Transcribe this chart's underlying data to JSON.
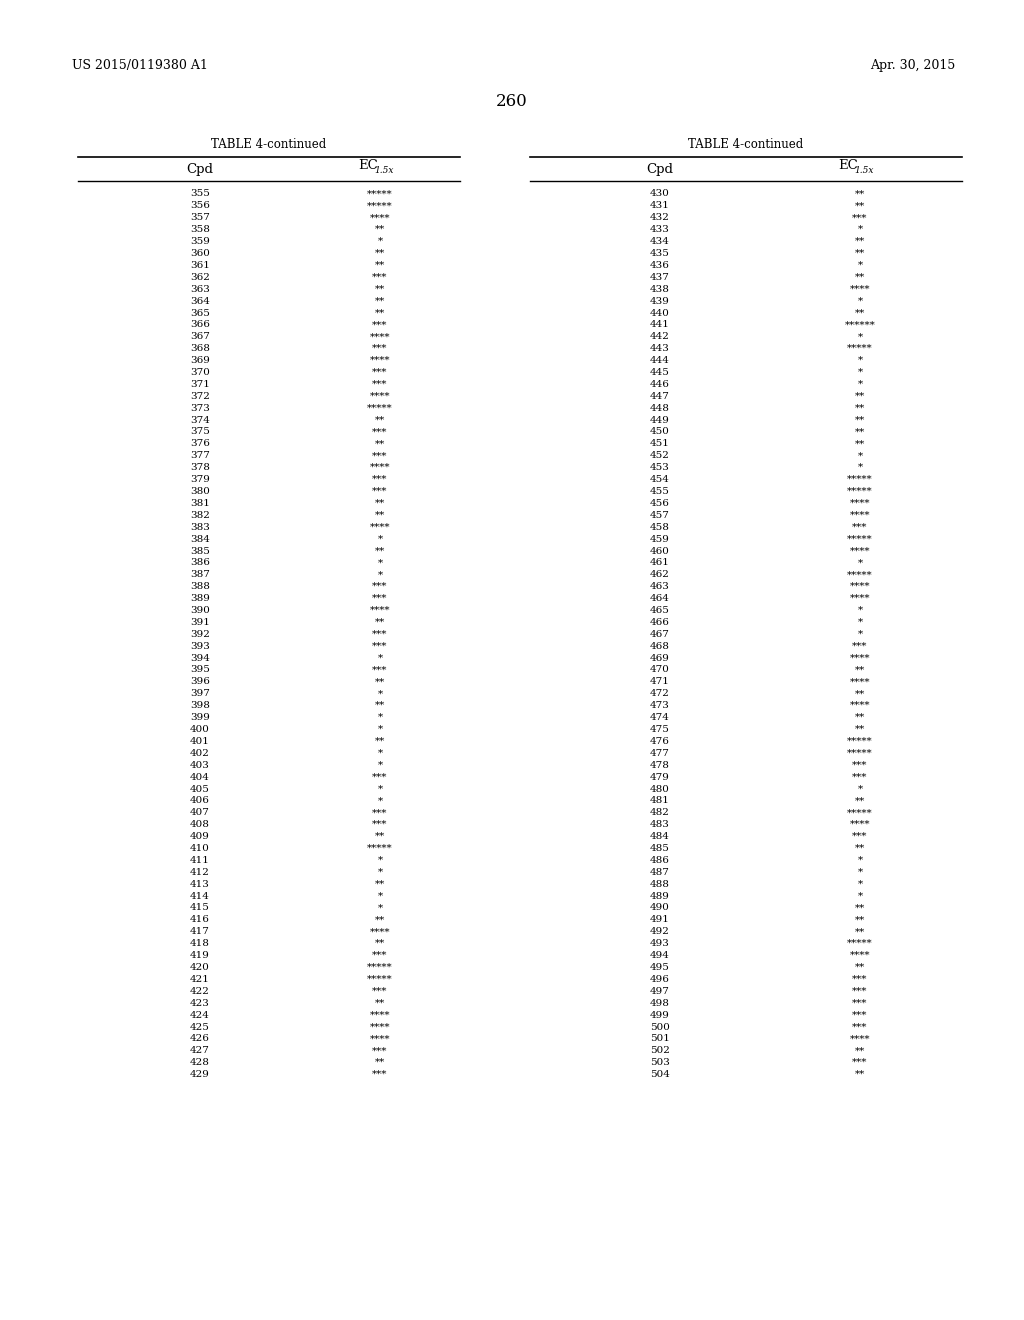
{
  "header_left": "US 2015/0119380 A1",
  "header_right": "Apr. 30, 2015",
  "page_number": "260",
  "table_title": "TABLE 4-continued",
  "col1_header": "Cpd",
  "col2_header": "EC",
  "col2_subscript": "1.5x",
  "left_table": [
    [
      "355",
      "*****"
    ],
    [
      "356",
      "*****"
    ],
    [
      "357",
      "****"
    ],
    [
      "358",
      "**"
    ],
    [
      "359",
      "*"
    ],
    [
      "360",
      "**"
    ],
    [
      "361",
      "**"
    ],
    [
      "362",
      "***"
    ],
    [
      "363",
      "**"
    ],
    [
      "364",
      "**"
    ],
    [
      "365",
      "**"
    ],
    [
      "366",
      "***"
    ],
    [
      "367",
      "****"
    ],
    [
      "368",
      "***"
    ],
    [
      "369",
      "****"
    ],
    [
      "370",
      "***"
    ],
    [
      "371",
      "***"
    ],
    [
      "372",
      "****"
    ],
    [
      "373",
      "*****"
    ],
    [
      "374",
      "**"
    ],
    [
      "375",
      "***"
    ],
    [
      "376",
      "**"
    ],
    [
      "377",
      "***"
    ],
    [
      "378",
      "****"
    ],
    [
      "379",
      "***"
    ],
    [
      "380",
      "***"
    ],
    [
      "381",
      "**"
    ],
    [
      "382",
      "**"
    ],
    [
      "383",
      "****"
    ],
    [
      "384",
      "*"
    ],
    [
      "385",
      "**"
    ],
    [
      "386",
      "*"
    ],
    [
      "387",
      "*"
    ],
    [
      "388",
      "***"
    ],
    [
      "389",
      "***"
    ],
    [
      "390",
      "****"
    ],
    [
      "391",
      "**"
    ],
    [
      "392",
      "***"
    ],
    [
      "393",
      "***"
    ],
    [
      "394",
      "*"
    ],
    [
      "395",
      "***"
    ],
    [
      "396",
      "**"
    ],
    [
      "397",
      "*"
    ],
    [
      "398",
      "**"
    ],
    [
      "399",
      "*"
    ],
    [
      "400",
      "*"
    ],
    [
      "401",
      "**"
    ],
    [
      "402",
      "*"
    ],
    [
      "403",
      "*"
    ],
    [
      "404",
      "***"
    ],
    [
      "405",
      "*"
    ],
    [
      "406",
      "*"
    ],
    [
      "407",
      "***"
    ],
    [
      "408",
      "***"
    ],
    [
      "409",
      "**"
    ],
    [
      "410",
      "*****"
    ],
    [
      "411",
      "*"
    ],
    [
      "412",
      "*"
    ],
    [
      "413",
      "**"
    ],
    [
      "414",
      "*"
    ],
    [
      "415",
      "*"
    ],
    [
      "416",
      "**"
    ],
    [
      "417",
      "****"
    ],
    [
      "418",
      "**"
    ],
    [
      "419",
      "***"
    ],
    [
      "420",
      "*****"
    ],
    [
      "421",
      "*****"
    ],
    [
      "422",
      "***"
    ],
    [
      "423",
      "**"
    ],
    [
      "424",
      "****"
    ],
    [
      "425",
      "****"
    ],
    [
      "426",
      "****"
    ],
    [
      "427",
      "***"
    ],
    [
      "428",
      "**"
    ],
    [
      "429",
      "***"
    ]
  ],
  "right_table": [
    [
      "430",
      "**"
    ],
    [
      "431",
      "**"
    ],
    [
      "432",
      "***"
    ],
    [
      "433",
      "*"
    ],
    [
      "434",
      "**"
    ],
    [
      "435",
      "**"
    ],
    [
      "436",
      "*"
    ],
    [
      "437",
      "**"
    ],
    [
      "438",
      "****"
    ],
    [
      "439",
      "*"
    ],
    [
      "440",
      "**"
    ],
    [
      "441",
      "******"
    ],
    [
      "442",
      "*"
    ],
    [
      "443",
      "*****"
    ],
    [
      "444",
      "*"
    ],
    [
      "445",
      "*"
    ],
    [
      "446",
      "*"
    ],
    [
      "447",
      "**"
    ],
    [
      "448",
      "**"
    ],
    [
      "449",
      "**"
    ],
    [
      "450",
      "**"
    ],
    [
      "451",
      "**"
    ],
    [
      "452",
      "*"
    ],
    [
      "453",
      "*"
    ],
    [
      "454",
      "*****"
    ],
    [
      "455",
      "*****"
    ],
    [
      "456",
      "****"
    ],
    [
      "457",
      "****"
    ],
    [
      "458",
      "***"
    ],
    [
      "459",
      "*****"
    ],
    [
      "460",
      "****"
    ],
    [
      "461",
      "*"
    ],
    [
      "462",
      "*****"
    ],
    [
      "463",
      "****"
    ],
    [
      "464",
      "****"
    ],
    [
      "465",
      "*"
    ],
    [
      "466",
      "*"
    ],
    [
      "467",
      "*"
    ],
    [
      "468",
      "***"
    ],
    [
      "469",
      "****"
    ],
    [
      "470",
      "**"
    ],
    [
      "471",
      "****"
    ],
    [
      "472",
      "**"
    ],
    [
      "473",
      "****"
    ],
    [
      "474",
      "**"
    ],
    [
      "475",
      "**"
    ],
    [
      "476",
      "*****"
    ],
    [
      "477",
      "*****"
    ],
    [
      "478",
      "***"
    ],
    [
      "479",
      "***"
    ],
    [
      "480",
      "*"
    ],
    [
      "481",
      "**"
    ],
    [
      "482",
      "*****"
    ],
    [
      "483",
      "****"
    ],
    [
      "484",
      "***"
    ],
    [
      "485",
      "**"
    ],
    [
      "486",
      "*"
    ],
    [
      "487",
      "*"
    ],
    [
      "488",
      "*"
    ],
    [
      "489",
      "*"
    ],
    [
      "490",
      "**"
    ],
    [
      "491",
      "**"
    ],
    [
      "492",
      "**"
    ],
    [
      "493",
      "*****"
    ],
    [
      "494",
      "****"
    ],
    [
      "495",
      "**"
    ],
    [
      "496",
      "***"
    ],
    [
      "497",
      "***"
    ],
    [
      "498",
      "***"
    ],
    [
      "499",
      "***"
    ],
    [
      "500",
      "***"
    ],
    [
      "501",
      "****"
    ],
    [
      "502",
      "**"
    ],
    [
      "503",
      "***"
    ],
    [
      "504",
      "**"
    ]
  ],
  "bg_color": "#ffffff",
  "text_color": "#000000",
  "line_color": "#000000",
  "font_size_header": 9.5,
  "font_size_data": 7.5,
  "font_size_title": 8.5,
  "font_size_page": 12,
  "font_size_hdr_text": 9
}
